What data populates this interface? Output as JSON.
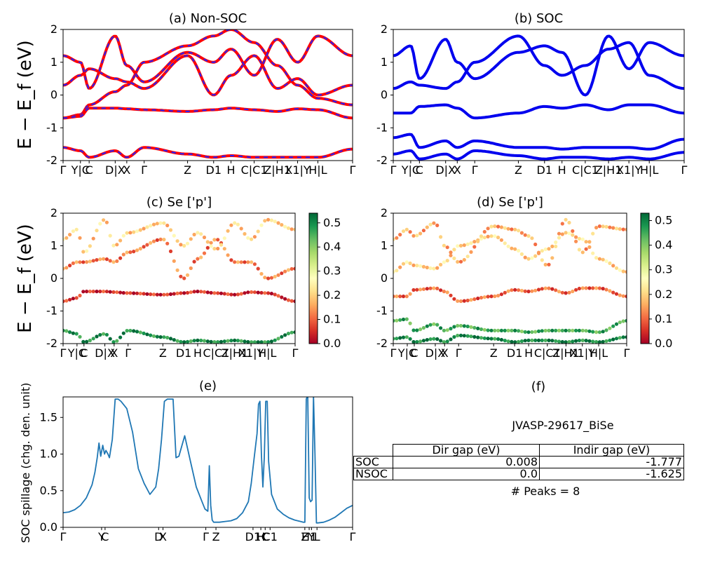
{
  "figure": {
    "ylabel_band": "E − E_f (eV)",
    "colorbar_ticks": [
      "0.0",
      "0.1",
      "0.2",
      "0.3",
      "0.4",
      "0.5"
    ]
  },
  "panel_f": {
    "title": "(f)",
    "material": "JVASP-29617_BiSe",
    "table": {
      "header": [
        "",
        "Dir gap (eV)",
        "Indir gap (eV)"
      ],
      "rows": [
        [
          "SOC",
          "0.008",
          "-1.777"
        ],
        [
          "NSOC",
          "0.0",
          "-1.625"
        ]
      ]
    },
    "peaks": "# Peaks = 8"
  },
  "chart_data": [
    {
      "type": "line",
      "title": "(a) Non-SOC",
      "ylabel": "E − E_f (eV)",
      "ylim": [
        -2,
        2
      ],
      "yticks": [
        -2,
        -1,
        0,
        1,
        2
      ],
      "xticks": [
        "Γ",
        "Y|C",
        "C",
        "D|X",
        "X",
        "Γ",
        "Z",
        "D1",
        "H",
        "C|C1",
        "Z|H1",
        "X1|Y",
        "H|L",
        "Γ"
      ],
      "xtick_pos": [
        0,
        0.06,
        0.09,
        0.18,
        0.22,
        0.28,
        0.43,
        0.52,
        0.58,
        0.66,
        0.74,
        0.81,
        0.88,
        1.0
      ],
      "series": [
        {
          "color": "#ff0000",
          "dash": "#2222ff",
          "values": [
            -0.7,
            -0.6,
            -0.3,
            0.1,
            0.3,
            1.0,
            1.5,
            1.8,
            2.0,
            1.6,
            0.9,
            0.3,
            -0.1,
            -0.3
          ]
        },
        {
          "color": "#ff0000",
          "dash": "#2222ff",
          "values": [
            -0.7,
            -0.65,
            -0.4,
            -0.4,
            -0.42,
            -0.45,
            -0.5,
            -0.45,
            -0.4,
            -0.45,
            -0.5,
            -0.42,
            -0.45,
            -0.7
          ]
        },
        {
          "color": "#ff0000",
          "dash": "#2222ff",
          "values": [
            0.3,
            0.6,
            0.8,
            0.5,
            0.4,
            0.2,
            1.2,
            0.0,
            0.6,
            1.2,
            0.2,
            0.5,
            0.0,
            0.3
          ]
        },
        {
          "color": "#ff0000",
          "dash": "#2222ff",
          "values": [
            1.2,
            1.0,
            0.2,
            1.8,
            0.9,
            0.4,
            1.3,
            1.0,
            1.4,
            0.6,
            1.7,
            1.0,
            1.8,
            1.2
          ]
        },
        {
          "color": "#ff0000",
          "dash": "#2222ff",
          "values": [
            -1.6,
            -1.7,
            -1.9,
            -1.7,
            -1.9,
            -1.6,
            -1.8,
            -1.9,
            -1.85,
            -1.9,
            -1.9,
            -1.9,
            -1.9,
            -1.65
          ]
        }
      ]
    },
    {
      "type": "line",
      "title": "(b) SOC",
      "ylim": [
        -2,
        2
      ],
      "yticks": [
        -2,
        -1,
        0,
        1,
        2
      ],
      "xticks": [
        "Γ",
        "Y|C",
        "C",
        "D|X",
        "X",
        "Γ",
        "Z",
        "D1",
        "H",
        "C|C1",
        "Z|H1",
        "X1|Y",
        "H|L",
        "Γ"
      ],
      "xtick_pos": [
        0,
        0.06,
        0.09,
        0.18,
        0.22,
        0.28,
        0.43,
        0.52,
        0.58,
        0.66,
        0.74,
        0.81,
        0.88,
        1.0
      ],
      "series": [
        {
          "color": "#0000ee",
          "values": [
            -0.55,
            -0.55,
            -0.35,
            -0.3,
            -0.4,
            -0.7,
            -0.55,
            -0.35,
            -0.4,
            -0.3,
            -0.45,
            -0.3,
            -0.3,
            -0.55
          ]
        },
        {
          "color": "#0000ee",
          "values": [
            0.2,
            0.4,
            0.3,
            0.2,
            0.4,
            1.0,
            1.8,
            0.9,
            0.6,
            0.9,
            1.4,
            1.6,
            0.6,
            0.2
          ]
        },
        {
          "color": "#0000ee",
          "values": [
            1.2,
            1.5,
            0.5,
            1.7,
            1.0,
            0.5,
            1.3,
            1.5,
            1.3,
            0.0,
            1.8,
            0.8,
            1.6,
            1.2
          ]
        },
        {
          "color": "#0000ee",
          "values": [
            -1.3,
            -1.2,
            -1.6,
            -1.4,
            -1.6,
            -1.4,
            -1.6,
            -1.6,
            -1.65,
            -1.6,
            -1.6,
            -1.6,
            -1.65,
            -1.35
          ]
        },
        {
          "color": "#0000ee",
          "values": [
            -1.8,
            -1.7,
            -1.95,
            -1.8,
            -1.95,
            -1.7,
            -1.85,
            -1.95,
            -1.9,
            -1.9,
            -1.95,
            -1.9,
            -1.95,
            -1.75
          ]
        }
      ]
    },
    {
      "type": "scatter",
      "title": "(c)  Se ['p']",
      "ylabel": "E − E_f (eV)",
      "ylim": [
        -2,
        2
      ],
      "yticks": [
        -2,
        -1,
        0,
        1,
        2
      ],
      "xticks": [
        "Γ",
        "Y|C",
        "C",
        "D|X",
        "X",
        "Γ",
        "Z",
        "D1",
        "H",
        "C|C1",
        "Z|H1",
        "X1|Y",
        "H|L",
        "Γ"
      ],
      "xtick_pos": [
        0,
        0.06,
        0.09,
        0.18,
        0.22,
        0.28,
        0.43,
        0.52,
        0.58,
        0.66,
        0.74,
        0.81,
        0.88,
        1.0
      ],
      "colorbar": {
        "min": 0.0,
        "max": 0.54,
        "cmap": "RdYlGn"
      },
      "series": [
        {
          "weight": 0.05,
          "values": [
            -0.7,
            -0.6,
            -0.4,
            -0.4,
            -0.42,
            -0.45,
            -0.5,
            -0.45,
            -0.4,
            -0.45,
            -0.5,
            -0.42,
            -0.45,
            -0.7
          ]
        },
        {
          "weight": 0.12,
          "values": [
            0.3,
            0.5,
            0.5,
            0.6,
            0.5,
            0.8,
            1.2,
            0.0,
            0.6,
            1.2,
            0.5,
            0.5,
            0.0,
            0.3
          ]
        },
        {
          "weight": 0.2,
          "values": [
            1.2,
            1.5,
            0.8,
            1.8,
            1.0,
            1.4,
            1.7,
            1.0,
            1.4,
            0.9,
            1.7,
            1.2,
            1.8,
            1.5
          ]
        },
        {
          "weight": 0.5,
          "values": [
            -1.6,
            -1.7,
            -1.95,
            -1.7,
            -1.95,
            -1.6,
            -1.8,
            -1.95,
            -1.9,
            -1.95,
            -1.9,
            -1.95,
            -1.95,
            -1.65
          ]
        }
      ]
    },
    {
      "type": "scatter",
      "title": "(d) Se ['p']",
      "ylim": [
        -2,
        2
      ],
      "yticks": [
        -2,
        -1,
        0,
        1,
        2
      ],
      "xticks": [
        "Γ",
        "Y|C",
        "C",
        "D|X",
        "X",
        "Γ",
        "Z",
        "D1",
        "H",
        "C|C1",
        "Z|H1",
        "X1|Y",
        "H|L",
        "Γ"
      ],
      "xtick_pos": [
        0,
        0.06,
        0.09,
        0.18,
        0.22,
        0.28,
        0.43,
        0.52,
        0.58,
        0.66,
        0.74,
        0.81,
        0.88,
        1.0
      ],
      "colorbar": {
        "min": 0.0,
        "max": 0.53,
        "cmap": "RdYlGn"
      },
      "series": [
        {
          "weight": 0.1,
          "values": [
            -0.55,
            -0.55,
            -0.35,
            -0.3,
            -0.4,
            -0.7,
            -0.55,
            -0.35,
            -0.4,
            -0.3,
            -0.45,
            -0.3,
            -0.3,
            -0.55
          ]
        },
        {
          "weight": 0.2,
          "values": [
            0.2,
            0.5,
            0.4,
            0.3,
            0.5,
            1.0,
            1.3,
            0.9,
            0.6,
            0.9,
            1.4,
            1.2,
            0.6,
            0.2
          ]
        },
        {
          "weight": 0.16,
          "values": [
            1.2,
            1.5,
            1.3,
            1.7,
            1.0,
            0.5,
            1.6,
            1.5,
            1.3,
            0.4,
            1.8,
            0.8,
            1.6,
            1.5
          ]
        },
        {
          "weight": 0.45,
          "values": [
            -1.3,
            -1.25,
            -1.6,
            -1.4,
            -1.6,
            -1.45,
            -1.6,
            -1.6,
            -1.65,
            -1.6,
            -1.6,
            -1.6,
            -1.65,
            -1.3
          ]
        },
        {
          "weight": 0.5,
          "values": [
            -1.85,
            -1.8,
            -1.95,
            -1.85,
            -1.95,
            -1.75,
            -1.85,
            -1.95,
            -1.9,
            -1.9,
            -1.95,
            -1.9,
            -1.95,
            -1.8
          ]
        }
      ]
    },
    {
      "type": "line",
      "title": "(e)",
      "ylabel": "SOC spillage (chg. den. unit)",
      "ylim": [
        0,
        1.78
      ],
      "yticks": [
        0.0,
        0.5,
        1.0,
        1.5
      ],
      "xticks": [
        "Γ",
        "Y",
        "C",
        "D",
        "X",
        "Γ",
        "Z",
        "D1",
        "H",
        "C",
        "C1",
        "Z",
        "H1",
        "Y",
        "L",
        "Γ"
      ],
      "xtick_pos": [
        0,
        0.133,
        0.145,
        0.33,
        0.345,
        0.493,
        0.528,
        0.656,
        0.683,
        0.698,
        0.715,
        0.835,
        0.85,
        0.858,
        0.877,
        1.0
      ],
      "series": [
        {
          "color": "#1f77b4",
          "x": [
            0,
            0.02,
            0.04,
            0.06,
            0.08,
            0.1,
            0.11,
            0.118,
            0.124,
            0.13,
            0.137,
            0.143,
            0.148,
            0.155,
            0.16,
            0.17,
            0.18,
            0.19,
            0.2,
            0.22,
            0.24,
            0.26,
            0.28,
            0.3,
            0.32,
            0.33,
            0.34,
            0.35,
            0.36,
            0.37,
            0.38,
            0.39,
            0.4,
            0.42,
            0.44,
            0.46,
            0.48,
            0.49,
            0.5,
            0.505,
            0.51,
            0.515,
            0.52,
            0.54,
            0.56,
            0.58,
            0.6,
            0.62,
            0.64,
            0.65,
            0.66,
            0.67,
            0.675,
            0.68,
            0.685,
            0.69,
            0.695,
            0.7,
            0.705,
            0.71,
            0.72,
            0.74,
            0.76,
            0.78,
            0.8,
            0.82,
            0.83,
            0.835,
            0.84,
            0.845,
            0.85,
            0.855,
            0.86,
            0.865,
            0.87,
            0.875,
            0.88,
            0.9,
            0.92,
            0.94,
            0.96,
            0.98,
            1.0
          ],
          "values": [
            0.2,
            0.21,
            0.24,
            0.3,
            0.4,
            0.58,
            0.75,
            0.95,
            1.15,
            0.97,
            1.12,
            1.0,
            1.05,
            1.0,
            0.95,
            1.2,
            1.75,
            1.75,
            1.72,
            1.62,
            1.3,
            0.8,
            0.6,
            0.45,
            0.55,
            0.8,
            1.2,
            1.72,
            1.75,
            1.75,
            1.75,
            0.95,
            0.97,
            1.25,
            0.9,
            0.55,
            0.35,
            0.25,
            0.22,
            0.84,
            0.3,
            0.1,
            0.07,
            0.07,
            0.08,
            0.09,
            0.12,
            0.2,
            0.35,
            0.6,
            0.95,
            1.28,
            1.68,
            1.72,
            1.0,
            0.55,
            0.95,
            1.72,
            1.72,
            0.9,
            0.45,
            0.25,
            0.18,
            0.13,
            0.1,
            0.08,
            0.07,
            0.07,
            1.75,
            1.8,
            0.4,
            0.35,
            0.37,
            1.8,
            1.0,
            0.06,
            0.06,
            0.07,
            0.1,
            0.14,
            0.2,
            0.26,
            0.3
          ]
        }
      ]
    }
  ]
}
